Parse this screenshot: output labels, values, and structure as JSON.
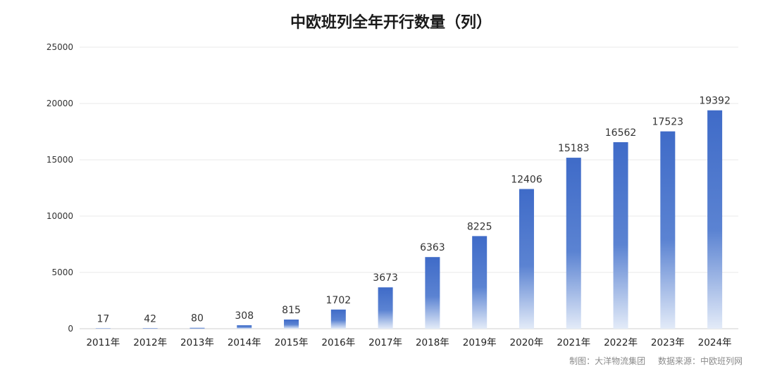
{
  "chart_data": {
    "type": "bar",
    "title": "中欧班列全年开行数量（列）",
    "categories": [
      "2011年",
      "2012年",
      "2013年",
      "2014年",
      "2015年",
      "2016年",
      "2017年",
      "2018年",
      "2019年",
      "2020年",
      "2021年",
      "2022年",
      "2023年",
      "2024年"
    ],
    "values": [
      17,
      42,
      80,
      308,
      815,
      1702,
      3673,
      6363,
      8225,
      12406,
      15183,
      16562,
      17523,
      19392
    ],
    "ylim": [
      0,
      25000
    ],
    "yticks": [
      0,
      5000,
      10000,
      15000,
      20000,
      25000
    ],
    "grid": true,
    "legend": "none",
    "colors": {
      "bar_top": "#3f6bc8",
      "bar_bottom": "#e3ebf8",
      "grid": "#e8e8e8"
    }
  },
  "footer": {
    "credit": "制图：大洋物流集团",
    "source": "数据来源：中欧班列网"
  }
}
